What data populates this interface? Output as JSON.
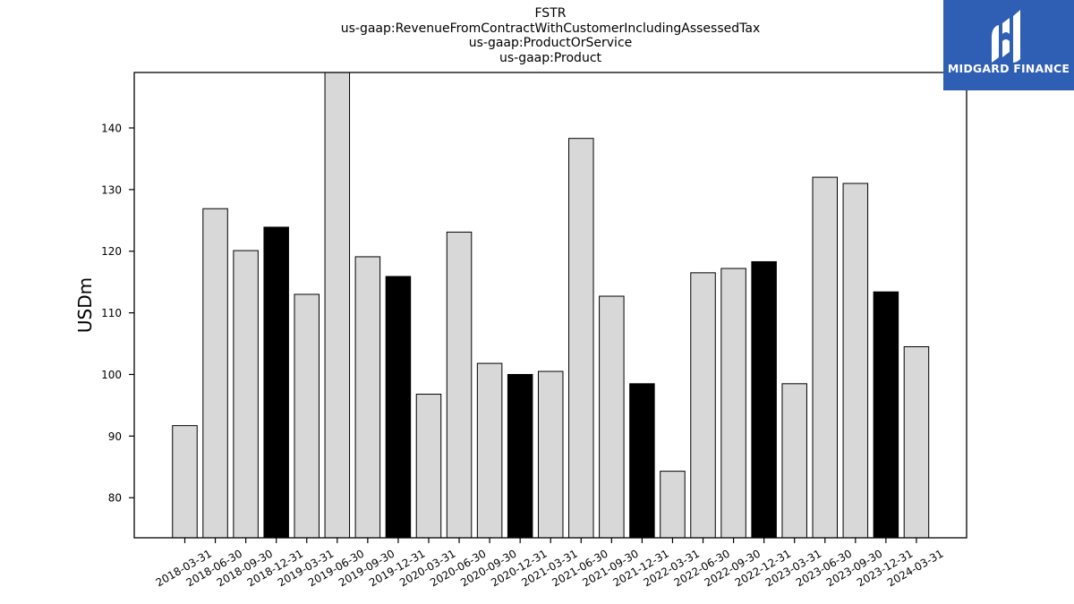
{
  "chart_data": {
    "type": "bar",
    "title_lines": [
      "FSTR",
      "us-gaap:RevenueFromContractWithCustomerIncludingAssessedTax",
      "us-gaap:ProductOrService",
      "us-gaap:Product"
    ],
    "xlabel": "",
    "ylabel": "USDm",
    "ylim": [
      73.5,
      149
    ],
    "yticks": [
      80,
      90,
      100,
      110,
      120,
      130,
      140
    ],
    "grid": false,
    "bar_fill_default": "#d8d8d8",
    "bar_fill_highlight": "#000000",
    "bar_edge": "#000000",
    "categories": [
      "2018-03-31",
      "2018-06-30",
      "2018-09-30",
      "2018-12-31",
      "2019-03-31",
      "2019-06-30",
      "2019-09-30",
      "2019-12-31",
      "2020-03-31",
      "2020-06-30",
      "2020-09-30",
      "2020-12-31",
      "2021-03-31",
      "2021-06-30",
      "2021-09-30",
      "2021-12-31",
      "2022-03-31",
      "2022-06-30",
      "2022-09-30",
      "2022-12-31",
      "2023-03-31",
      "2023-06-30",
      "2023-09-30",
      "2023-12-31",
      "2024-03-31"
    ],
    "values": [
      91.7,
      126.9,
      120.1,
      123.9,
      113.0,
      149.5,
      119.1,
      115.9,
      96.8,
      123.1,
      101.8,
      100.0,
      100.5,
      138.3,
      112.7,
      98.5,
      84.3,
      116.5,
      117.2,
      118.3,
      98.5,
      132.0,
      131.0,
      113.4,
      104.5
    ],
    "highlight": [
      false,
      false,
      false,
      true,
      false,
      false,
      false,
      true,
      false,
      false,
      false,
      true,
      false,
      false,
      false,
      true,
      false,
      false,
      false,
      true,
      false,
      false,
      false,
      true,
      false
    ]
  },
  "logo": {
    "text": "MIDGARD FINANCE",
    "background": "#2f5fb4"
  }
}
